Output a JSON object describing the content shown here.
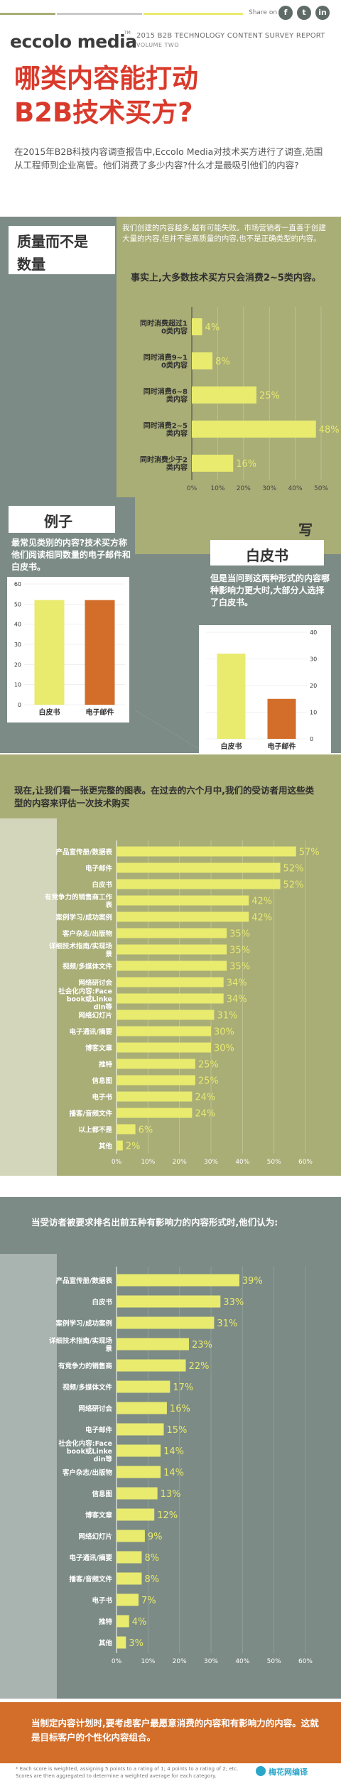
{
  "header": {
    "share_label": "Share on",
    "brand": "eccolo media",
    "brand_tm": "TM",
    "report_line1": "2015 B2B TECHNOLOGY CONTENT SURVEY REPORT",
    "report_line2": "VOLUME TWO",
    "share_icons": [
      "facebook-icon",
      "twitter-icon",
      "linkedin-icon"
    ]
  },
  "title": {
    "line1": "哪类内容能打动",
    "line2": "B2B技术买方?"
  },
  "intro": "在2015年B2B科技内容调查报告中,Eccolo Media对技术买方进行了调查,范围从工程师到企业高管。他们消费了多少内容?什么才是最吸引他们的内容?",
  "quality": {
    "tag_line1": "质量而不是",
    "tag_line2": "数量",
    "desc": "我们创建的内容越多,越有可能失败。市场营销者一直善于创建大量的内容,但并不是高质量的内容,也不是正确类型的内容。",
    "desc_highlight": "失败",
    "subtitle": "事实上,大多数技术买方只会消费2~5类内容。"
  },
  "example": {
    "tag": "例子",
    "question": "最常见类别的内容?技术买方称他们阅读相同数量的电子邮件和白皮书。"
  },
  "whitepaper": {
    "tag_top": "写",
    "tag": "白皮书",
    "text": "但是当问到这两种形式的内容哪种影响力更大时,大部分人选择了白皮书。"
  },
  "full": {
    "subtitle": "现在,让我们看一张更完整的图表。在过去的六个月中,我们的受访者用这些类型的内容来评估一次技术购买"
  },
  "rank": {
    "subtitle": "当受访者被要求排名出前五种有影响力的内容形式时,他们认为:"
  },
  "footer": {
    "callout": "当制定内容计划时,要考虑客户最愿意消费的内容和有影响力的内容。这就是目标客户的个性化内容组合。",
    "footnote1": "* Each score is weighted, assigning 5 points to a rating of 1; 4 points to a rating of 2; etc.",
    "footnote2": "Scores are then aggregated to determine a weighted average for each category.",
    "watermark": "梅花网编译"
  },
  "colors": {
    "olive": "#a9ad76",
    "slate": "#7c8b85",
    "yellow": "#e8eb6e",
    "orange": "#d26e2a",
    "red": "#d93a2b",
    "dark": "#3a3a3a"
  },
  "chart_data": [
    {
      "type": "bar",
      "orientation": "horizontal",
      "categories": [
        "同时消费超过10类内容",
        "同时消费9~10类内容",
        "同时消费6~8类内容",
        "同时消费2~5类内容",
        "同时消费少于2类内容"
      ],
      "values": [
        4,
        8,
        25,
        48,
        16
      ],
      "value_labels": [
        "4%",
        "8%",
        "25%",
        "48%",
        "16%"
      ],
      "xlim": [
        0,
        50
      ],
      "ticks": [
        "0%",
        "10%",
        "20%",
        "30%",
        "40%",
        "50%"
      ],
      "title": "",
      "xlabel": "",
      "ylabel": ""
    },
    {
      "type": "bar",
      "categories": [
        "白皮书",
        "电子邮件"
      ],
      "values": [
        52,
        52
      ],
      "ylim": [
        0,
        60
      ],
      "ticks": [
        "0",
        "10",
        "20",
        "30",
        "40",
        "50",
        "60"
      ],
      "colors": [
        "#e8eb6e",
        "#d26e2a"
      ],
      "title": "",
      "xlabel": "",
      "ylabel": ""
    },
    {
      "type": "bar",
      "categories": [
        "白皮书",
        "电子邮件"
      ],
      "values": [
        32,
        15
      ],
      "ylim": [
        0,
        40
      ],
      "ticks": [
        "0",
        "10",
        "20",
        "30",
        "40"
      ],
      "colors": [
        "#e8eb6e",
        "#d26e2a"
      ],
      "title": "",
      "xlabel": "",
      "ylabel": ""
    },
    {
      "type": "bar",
      "orientation": "horizontal",
      "categories": [
        "产品宣传册/数据表",
        "电子邮件",
        "白皮书",
        "有竞争力的销售商工作表",
        "案例学习/成功案例",
        "客户杂志/出版物",
        "详细技术指南/实现场景",
        "视频/多媒体文件",
        "网络研讨会",
        "社会化内容:Facebook或Linkedin等",
        "网络幻灯片",
        "电子通讯/摘要",
        "博客文章",
        "推特",
        "信息图",
        "电子书",
        "播客/音频文件",
        "以上都不是",
        "其他"
      ],
      "values": [
        57,
        52,
        52,
        42,
        42,
        35,
        35,
        35,
        34,
        34,
        31,
        30,
        30,
        25,
        25,
        24,
        24,
        6,
        2
      ],
      "value_labels": [
        "57%",
        "52%",
        "52%",
        "42%",
        "42%",
        "35%",
        "35%",
        "35%",
        "34%",
        "34%",
        "31%",
        "30%",
        "30%",
        "25%",
        "25%",
        "24%",
        "24%",
        "6%",
        "2%"
      ],
      "xlim": [
        0,
        60
      ],
      "ticks": [
        "0%",
        "10%",
        "20%",
        "30%",
        "40%",
        "50%",
        "60%"
      ],
      "title": "",
      "xlabel": "",
      "ylabel": ""
    },
    {
      "type": "bar",
      "orientation": "horizontal",
      "categories": [
        "产品宣传册/数据表",
        "白皮书",
        "案例学习/成功案例",
        "详细技术指南/实现场景",
        "有竞争力的销售商",
        "视频/多媒体文件",
        "网络研讨会",
        "电子邮件",
        "社会化内容:Facebook或Linkedin等",
        "客户杂志/出版物",
        "信息图",
        "博客文章",
        "网络幻灯片",
        "电子通讯/摘要",
        "播客/音频文件",
        "电子书",
        "推特",
        "其他"
      ],
      "values": [
        39,
        33,
        31,
        23,
        22,
        17,
        16,
        15,
        14,
        14,
        13,
        12,
        9,
        8,
        8,
        7,
        4,
        3
      ],
      "value_labels": [
        "39%",
        "33%",
        "31%",
        "23%",
        "22%",
        "17%",
        "16%",
        "15%",
        "14%",
        "14%",
        "13%",
        "12%",
        "9%",
        "8%",
        "8%",
        "7%",
        "4%",
        "3%"
      ],
      "xlim": [
        0,
        60
      ],
      "ticks": [
        "0%",
        "10%",
        "20%",
        "30%",
        "40%",
        "50%",
        "60%"
      ],
      "title": "",
      "xlabel": "",
      "ylabel": ""
    }
  ]
}
